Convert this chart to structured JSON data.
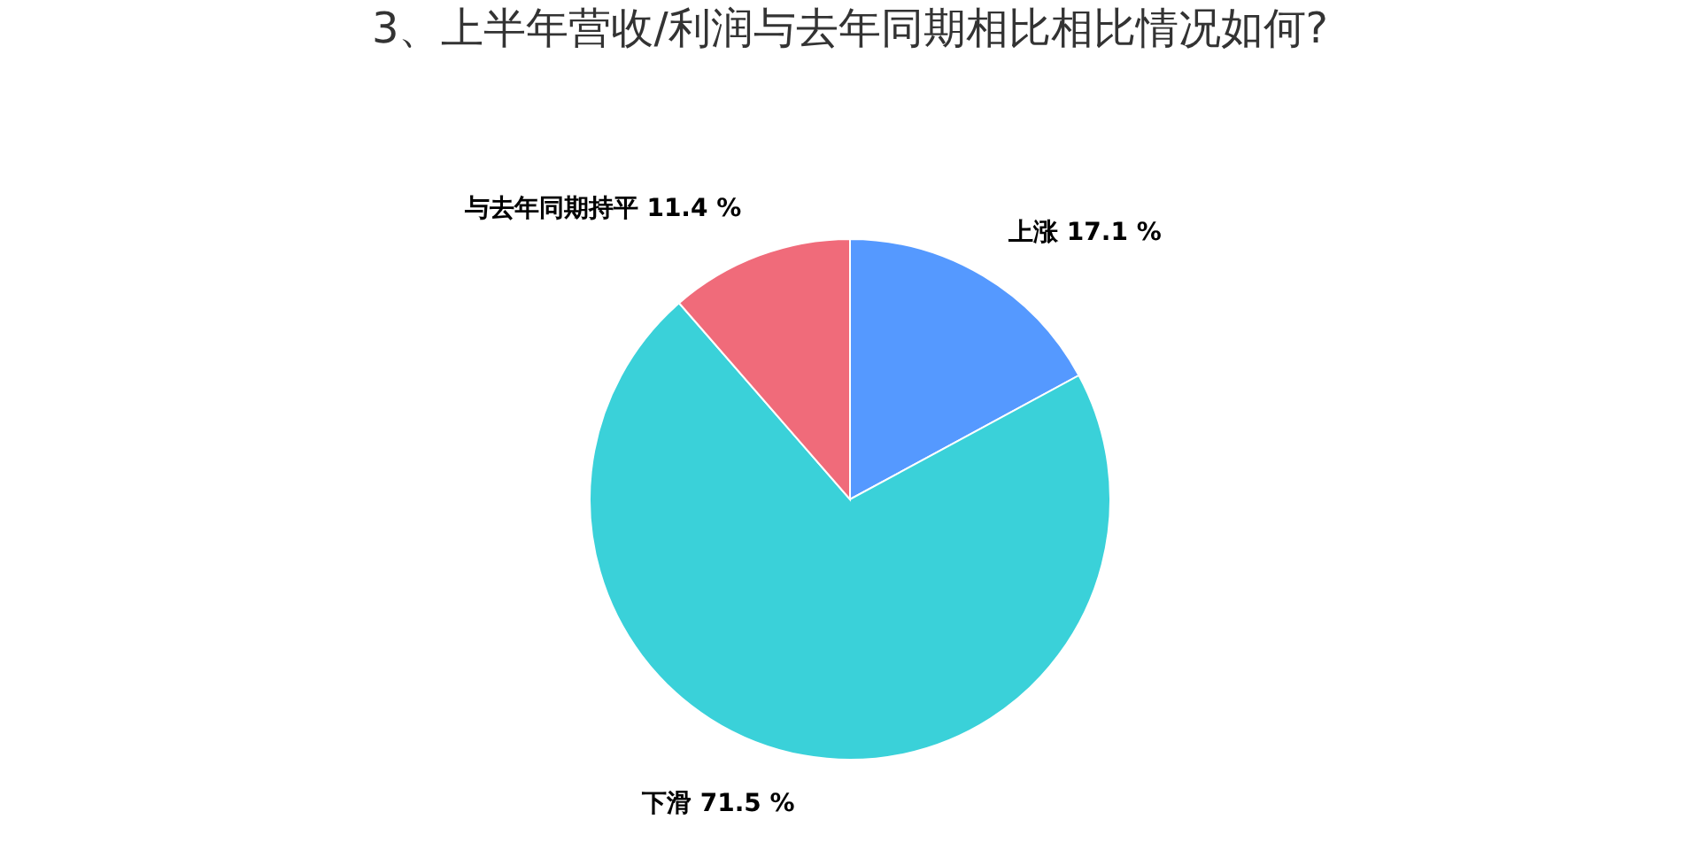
{
  "chart_data": {
    "type": "pie",
    "title": "3、上半年营收/利润与去年同期相比相比情况如何?",
    "categories": [
      "上涨",
      "下滑",
      "与去年同期持平"
    ],
    "values": [
      17.1,
      71.5,
      11.4
    ],
    "value_labels": [
      "17.1 %",
      "71.5 %",
      "11.4 %"
    ],
    "colors": [
      "#5599ff",
      "#3ad1d9",
      "#f06b7a"
    ],
    "legend": false
  }
}
